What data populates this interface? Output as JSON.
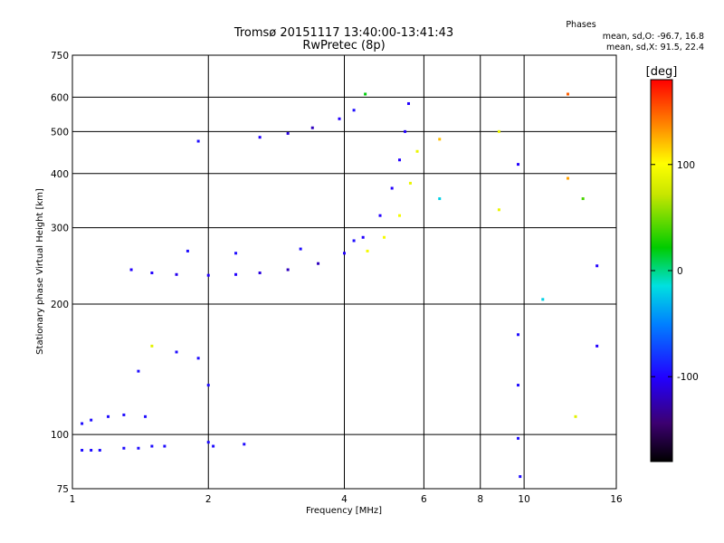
{
  "chart_data": {
    "type": "scatter",
    "title": "Tromsø 20151117 13:40:00-13:41:43",
    "subtitle": "RwPretec (8p)",
    "xlabel": "Frequency [MHz]",
    "ylabel": "Stationary phase Virtual Height [km]",
    "x_scale": "log",
    "y_scale": "log",
    "xlim": [
      1,
      16
    ],
    "ylim": [
      75,
      750
    ],
    "x_ticks": [
      1,
      2,
      4,
      6,
      8,
      10,
      16
    ],
    "x_tick_labels": [
      "1",
      "2",
      "4",
      "6",
      "8",
      "10",
      "16"
    ],
    "y_ticks": [
      75,
      100,
      200,
      300,
      400,
      500,
      600,
      750
    ],
    "y_tick_labels": [
      "75",
      "100",
      "200",
      "300",
      "400",
      "500",
      "600",
      "750"
    ],
    "grid": true,
    "stats": {
      "heading": "Phases",
      "line_o": "mean, sd,O: -96.7, 16.8",
      "line_x": "mean, sd,X:  91.5, 22.4"
    },
    "colorbar": {
      "label": "[deg]",
      "range": [
        -180,
        180
      ],
      "ticks": [
        100,
        0,
        -100
      ],
      "tick_labels": [
        "100",
        "0",
        "-100"
      ],
      "colormap": "rainbow"
    },
    "series": [
      {
        "x": 1.05,
        "y": 92,
        "phase": -95
      },
      {
        "x": 1.1,
        "y": 92,
        "phase": -95
      },
      {
        "x": 1.15,
        "y": 92,
        "phase": -95
      },
      {
        "x": 1.3,
        "y": 93,
        "phase": -95
      },
      {
        "x": 1.4,
        "y": 93,
        "phase": -95
      },
      {
        "x": 1.5,
        "y": 94,
        "phase": -95
      },
      {
        "x": 1.6,
        "y": 94,
        "phase": -95
      },
      {
        "x": 2.0,
        "y": 96,
        "phase": -95
      },
      {
        "x": 2.05,
        "y": 94,
        "phase": -95
      },
      {
        "x": 2.4,
        "y": 95,
        "phase": -95
      },
      {
        "x": 1.05,
        "y": 106,
        "phase": -95
      },
      {
        "x": 1.1,
        "y": 108,
        "phase": -95
      },
      {
        "x": 1.2,
        "y": 110,
        "phase": -95
      },
      {
        "x": 1.3,
        "y": 111,
        "phase": -95
      },
      {
        "x": 1.45,
        "y": 110,
        "phase": -95
      },
      {
        "x": 1.4,
        "y": 140,
        "phase": -95
      },
      {
        "x": 1.5,
        "y": 160,
        "phase": 85
      },
      {
        "x": 1.7,
        "y": 155,
        "phase": -95
      },
      {
        "x": 1.9,
        "y": 150,
        "phase": -95
      },
      {
        "x": 2.0,
        "y": 130,
        "phase": -95
      },
      {
        "x": 1.35,
        "y": 240,
        "phase": -100
      },
      {
        "x": 1.5,
        "y": 236,
        "phase": -100
      },
      {
        "x": 1.7,
        "y": 234,
        "phase": -105
      },
      {
        "x": 2.0,
        "y": 233,
        "phase": -100
      },
      {
        "x": 2.3,
        "y": 234,
        "phase": -100
      },
      {
        "x": 2.6,
        "y": 236,
        "phase": -110
      },
      {
        "x": 3.0,
        "y": 240,
        "phase": -120
      },
      {
        "x": 3.5,
        "y": 248,
        "phase": -120
      },
      {
        "x": 4.0,
        "y": 262,
        "phase": -100
      },
      {
        "x": 4.4,
        "y": 285,
        "phase": -100
      },
      {
        "x": 4.8,
        "y": 320,
        "phase": -100
      },
      {
        "x": 5.1,
        "y": 370,
        "phase": -100
      },
      {
        "x": 5.3,
        "y": 430,
        "phase": -100
      },
      {
        "x": 5.45,
        "y": 500,
        "phase": -100
      },
      {
        "x": 5.55,
        "y": 580,
        "phase": -100
      },
      {
        "x": 1.8,
        "y": 265,
        "phase": -95
      },
      {
        "x": 2.3,
        "y": 262,
        "phase": -95
      },
      {
        "x": 3.2,
        "y": 268,
        "phase": -95
      },
      {
        "x": 4.2,
        "y": 280,
        "phase": -95
      },
      {
        "x": 4.5,
        "y": 265,
        "phase": 95
      },
      {
        "x": 4.9,
        "y": 285,
        "phase": 95
      },
      {
        "x": 5.3,
        "y": 320,
        "phase": 95
      },
      {
        "x": 5.6,
        "y": 380,
        "phase": 90
      },
      {
        "x": 5.8,
        "y": 450,
        "phase": 90
      },
      {
        "x": 1.9,
        "y": 475,
        "phase": -95
      },
      {
        "x": 2.6,
        "y": 485,
        "phase": -100
      },
      {
        "x": 3.0,
        "y": 495,
        "phase": -110
      },
      {
        "x": 3.4,
        "y": 510,
        "phase": -120
      },
      {
        "x": 3.9,
        "y": 535,
        "phase": -100
      },
      {
        "x": 4.2,
        "y": 560,
        "phase": -95
      },
      {
        "x": 4.45,
        "y": 610,
        "phase": 20
      },
      {
        "x": 6.5,
        "y": 480,
        "phase": 120
      },
      {
        "x": 6.5,
        "y": 350,
        "phase": -20
      },
      {
        "x": 8.8,
        "y": 500,
        "phase": 90
      },
      {
        "x": 8.8,
        "y": 330,
        "phase": 90
      },
      {
        "x": 9.7,
        "y": 420,
        "phase": -100
      },
      {
        "x": 9.7,
        "y": 170,
        "phase": -95
      },
      {
        "x": 9.7,
        "y": 130,
        "phase": -95
      },
      {
        "x": 9.7,
        "y": 98,
        "phase": -95
      },
      {
        "x": 9.8,
        "y": 80,
        "phase": -95
      },
      {
        "x": 12.5,
        "y": 610,
        "phase": 150
      },
      {
        "x": 12.5,
        "y": 390,
        "phase": 130
      },
      {
        "x": 13.5,
        "y": 350,
        "phase": 40
      },
      {
        "x": 14.5,
        "y": 245,
        "phase": -100
      },
      {
        "x": 14.5,
        "y": 160,
        "phase": -100
      },
      {
        "x": 11.0,
        "y": 205,
        "phase": -20
      },
      {
        "x": 13.0,
        "y": 110,
        "phase": 85
      }
    ]
  }
}
